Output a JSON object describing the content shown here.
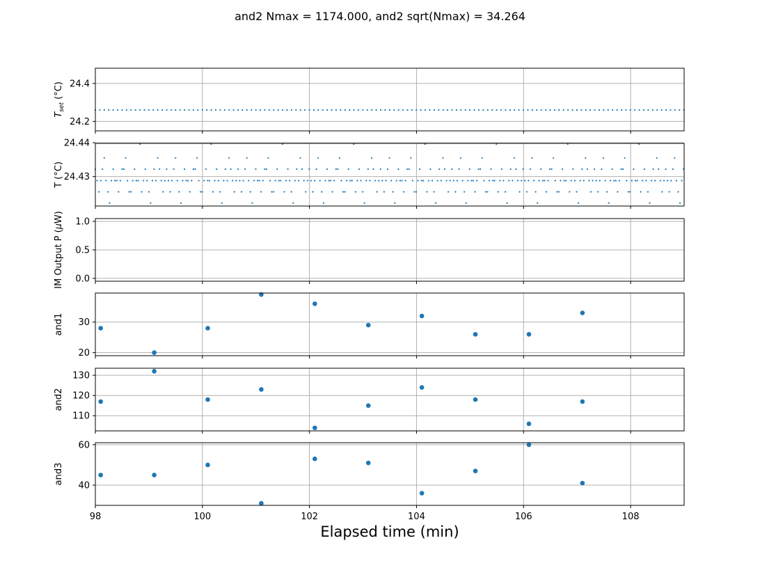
{
  "title": "and2 Nmax = 1174.000, and2 sqrt(Nmax) = 34.264",
  "colors": {
    "marker": "#1f77b4",
    "grid": "#b0b0b0",
    "axis": "#000000"
  },
  "chart_data": {
    "type": "scatter",
    "shared_x": {
      "label": "Elapsed time (min)",
      "xlim": [
        98,
        109
      ],
      "ticks": [
        98,
        100,
        102,
        104,
        106,
        108
      ],
      "tick_labels": [
        "98",
        "100",
        "102",
        "104",
        "106",
        "108"
      ]
    },
    "grid": true,
    "panels": [
      {
        "id": "tset",
        "ylabel": "T_set (°C)",
        "ylabel_main": "T",
        "ylabel_sub": "set",
        "ylabel_tail": " (°C)",
        "ylim": [
          24.15,
          24.48
        ],
        "yticks": [
          24.2,
          24.4
        ],
        "ytick_labels": [
          "24.2",
          "24.4"
        ],
        "marker": "small",
        "series": [
          {
            "x_start": 98.0,
            "x_step": 0.0833,
            "count": 133,
            "value": 24.26
          }
        ]
      },
      {
        "id": "temp",
        "ylabel": "T (°C)",
        "ylim": [
          24.4213,
          24.4398
        ],
        "yticks": [
          24.43,
          24.44
        ],
        "ytick_labels": [
          "24.43",
          "24.44"
        ],
        "marker": "small",
        "series": [
          {
            "x_start": 98.0,
            "x_step": 0.0333,
            "count": 331,
            "levels": [
              24.4222,
              24.4255,
              24.4288,
              24.4322,
              24.4355,
              24.4396
            ],
            "level_pattern": [
              3,
              2,
              1,
              2,
              3,
              4,
              2,
              1,
              0,
              2,
              3,
              2,
              2,
              1,
              2,
              3,
              3,
              4,
              2,
              1,
              1,
              2,
              3,
              2,
              2,
              5,
              1,
              2,
              3,
              2,
              1,
              0,
              2,
              3,
              2,
              4,
              3,
              2,
              1,
              2
            ]
          }
        ]
      },
      {
        "id": "im_power",
        "ylabel": "IM Output P (μW)",
        "ylabel_main": "IM Output P (",
        "ylabel_mu": "μ",
        "ylabel_tail": "W)",
        "ylim": [
          -0.05,
          1.05
        ],
        "yticks": [
          0.0,
          0.5,
          1.0
        ],
        "ytick_labels": [
          "0.0",
          "0.5",
          "1.0"
        ],
        "marker": "none",
        "series": []
      },
      {
        "id": "and1",
        "ylabel": "and1",
        "ylim": [
          19,
          39.5
        ],
        "yticks": [
          20,
          30
        ],
        "ytick_labels": [
          "20",
          "30"
        ],
        "marker": "large",
        "series": [
          {
            "x": [
              98.1,
              99.1,
              100.1,
              101.1,
              102.1,
              103.1,
              104.1,
              105.1,
              106.1,
              107.1
            ],
            "y": [
              28,
              20,
              28,
              39,
              36,
              29,
              32,
              26,
              26,
              33
            ]
          }
        ]
      },
      {
        "id": "and2",
        "ylabel": "and2",
        "ylim": [
          102.5,
          133.5
        ],
        "yticks": [
          110,
          120,
          130
        ],
        "ytick_labels": [
          "110",
          "120",
          "130"
        ],
        "marker": "large",
        "series": [
          {
            "x": [
              98.1,
              99.1,
              100.1,
              101.1,
              102.1,
              103.1,
              104.1,
              105.1,
              106.1,
              107.1
            ],
            "y": [
              117,
              132,
              118,
              123,
              104,
              115,
              124,
              118,
              106,
              117
            ]
          }
        ]
      },
      {
        "id": "and3",
        "ylabel": "and3",
        "ylim": [
          30,
          61
        ],
        "yticks": [
          40,
          60
        ],
        "ytick_labels": [
          "40",
          "60"
        ],
        "marker": "large",
        "series": [
          {
            "x": [
              98.1,
              99.1,
              100.1,
              101.1,
              102.1,
              103.1,
              104.1,
              105.1,
              106.1,
              107.1
            ],
            "y": [
              45,
              45,
              50,
              31,
              53,
              51,
              36,
              47,
              60,
              41
            ]
          }
        ]
      }
    ]
  }
}
